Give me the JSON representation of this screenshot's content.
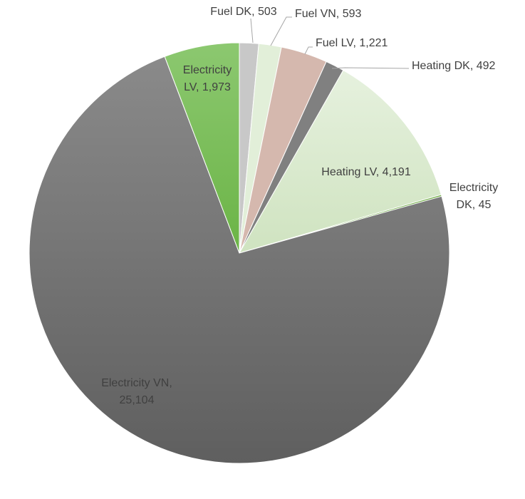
{
  "chart_data": {
    "type": "pie",
    "start_angle_deg": 0,
    "direction": "clockwise",
    "slices": [
      {
        "label_lines": [
          "Fuel DK, 503"
        ],
        "name": "Fuel DK",
        "value": 503,
        "color": "#c8c8c8"
      },
      {
        "label_lines": [
          "Fuel VN, 593"
        ],
        "name": "Fuel VN",
        "value": 593,
        "color": "#e2efd9"
      },
      {
        "label_lines": [
          "Fuel LV, 1,221"
        ],
        "name": "Fuel LV",
        "value": 1221,
        "color": "#d5b8ae"
      },
      {
        "label_lines": [
          "Heating DK, 492"
        ],
        "name": "Heating DK",
        "value": 492,
        "color": "#808080"
      },
      {
        "label_lines": [
          "Heating LV, 4,191"
        ],
        "name": "Heating LV",
        "value": 4191,
        "color": "#dcebd0"
      },
      {
        "label_lines": [
          "Electricity",
          "DK, 45"
        ],
        "name": "Electricity DK",
        "value": 45,
        "color": "#70ad47"
      },
      {
        "label_lines": [
          "Electricity VN,",
          "25,104"
        ],
        "name": "Electricity VN",
        "value": 25104,
        "color": "#757575"
      },
      {
        "label_lines": [
          "Electricity",
          "LV, 1,973"
        ],
        "name": "Electricity LV",
        "value": 1973,
        "color": "#7cc05a"
      }
    ]
  }
}
